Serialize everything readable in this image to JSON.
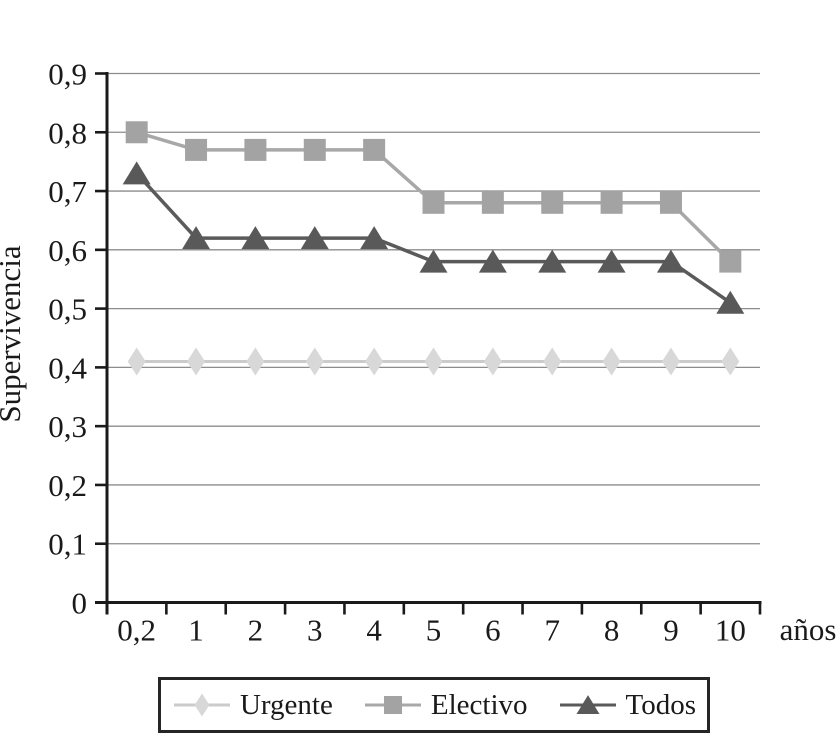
{
  "figure": {
    "background": "#ffffff",
    "text_color": "#1a1a1a"
  },
  "chart_data": {
    "type": "line",
    "title": "",
    "xlabel": "años",
    "ylabel": "Supervivencia",
    "x_categories": [
      "0,2",
      "1",
      "2",
      "3",
      "4",
      "5",
      "6",
      "7",
      "8",
      "9",
      "10"
    ],
    "ylim": [
      0,
      0.9
    ],
    "ytick_step": 0.1,
    "yticks": [
      {
        "value": 0.0,
        "label": "0"
      },
      {
        "value": 0.1,
        "label": "0,1"
      },
      {
        "value": 0.2,
        "label": "0,2"
      },
      {
        "value": 0.3,
        "label": "0,3"
      },
      {
        "value": 0.4,
        "label": "0,4"
      },
      {
        "value": 0.5,
        "label": "0,5"
      },
      {
        "value": 0.6,
        "label": "0,6"
      },
      {
        "value": 0.7,
        "label": "0,7"
      },
      {
        "value": 0.8,
        "label": "0,8"
      },
      {
        "value": 0.9,
        "label": "0,9"
      }
    ],
    "grid": "horizontal",
    "grid_color": "#8c8c8c",
    "axis_color": "#1a1a1a",
    "legend": {
      "position": "bottom",
      "border": true,
      "border_color": "#262626"
    },
    "series": [
      {
        "name": "Urgente",
        "marker": "diamond",
        "color": "#d8d8d8",
        "line_color": "#cbcbcb",
        "line_width": 3,
        "values": [
          0.41,
          0.41,
          0.41,
          0.41,
          0.41,
          0.41,
          0.41,
          0.41,
          0.41,
          0.41,
          0.41
        ]
      },
      {
        "name": "Electivo",
        "marker": "square",
        "color": "#a3a3a3",
        "line_color": "#a8a8a8",
        "line_width": 3.5,
        "values": [
          0.8,
          0.77,
          0.77,
          0.77,
          0.77,
          0.68,
          0.68,
          0.68,
          0.68,
          0.68,
          0.58
        ]
      },
      {
        "name": "Todos",
        "marker": "triangle",
        "color": "#595959",
        "line_color": "#5a5a5a",
        "line_width": 3.5,
        "values": [
          0.73,
          0.62,
          0.62,
          0.62,
          0.62,
          0.58,
          0.58,
          0.58,
          0.58,
          0.58,
          0.51
        ]
      }
    ]
  }
}
